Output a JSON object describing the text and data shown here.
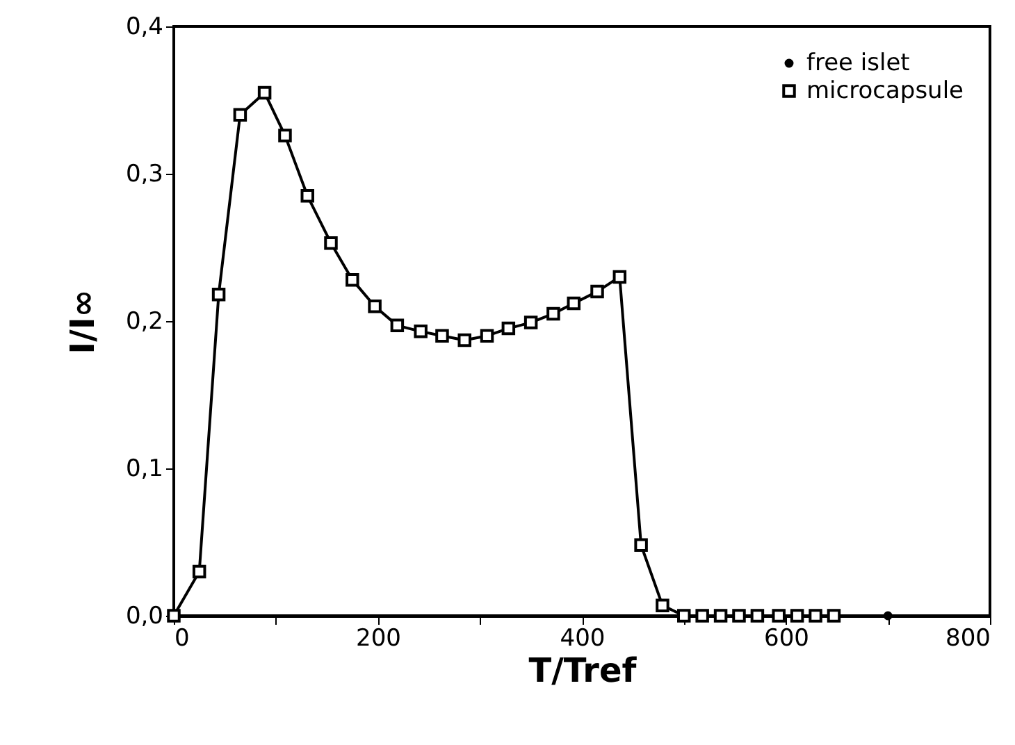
{
  "chart_data": {
    "type": "line",
    "xlabel": "T/Tref",
    "ylabel": "I/I∞",
    "xlim": [
      0,
      800
    ],
    "ylim": [
      0,
      0.4
    ],
    "xticks": [
      0,
      {
        "value": 100,
        "label": null
      },
      200,
      {
        "value": 300,
        "label": null
      },
      400,
      {
        "value": 500,
        "label": null
      },
      600,
      {
        "value": 700,
        "label": null
      },
      800
    ],
    "yticks": [
      {
        "value": 0,
        "label": "0,0"
      },
      {
        "value": 0.1,
        "label": "0,1"
      },
      {
        "value": 0.2,
        "label": "0,2"
      },
      {
        "value": 0.3,
        "label": "0,3"
      },
      {
        "value": 0.4,
        "label": "0,4"
      }
    ],
    "grid": false,
    "legend": "top right",
    "series": [
      {
        "name": "free islet",
        "type": "scatter",
        "marker": "circle",
        "color": "#000000",
        "x": [
          700
        ],
        "values": [
          0
        ]
      },
      {
        "name": "microcapsule",
        "type": "line",
        "marker": "square",
        "color": "#000000",
        "x": [
          0,
          25,
          44,
          65,
          89,
          109,
          131,
          154,
          175,
          197,
          219,
          242,
          263,
          285,
          307,
          328,
          350,
          372,
          392,
          415,
          437,
          458,
          479,
          500,
          518,
          536,
          554,
          572,
          593,
          611,
          629,
          647
        ],
        "values": [
          0,
          0.03,
          0.218,
          0.34,
          0.355,
          0.326,
          0.285,
          0.253,
          0.228,
          0.21,
          0.197,
          0.193,
          0.19,
          0.187,
          0.19,
          0.195,
          0.199,
          0.205,
          0.212,
          0.22,
          0.23,
          0.048,
          0.007,
          0,
          0,
          0,
          0,
          0,
          0,
          0,
          0,
          0
        ]
      }
    ]
  }
}
